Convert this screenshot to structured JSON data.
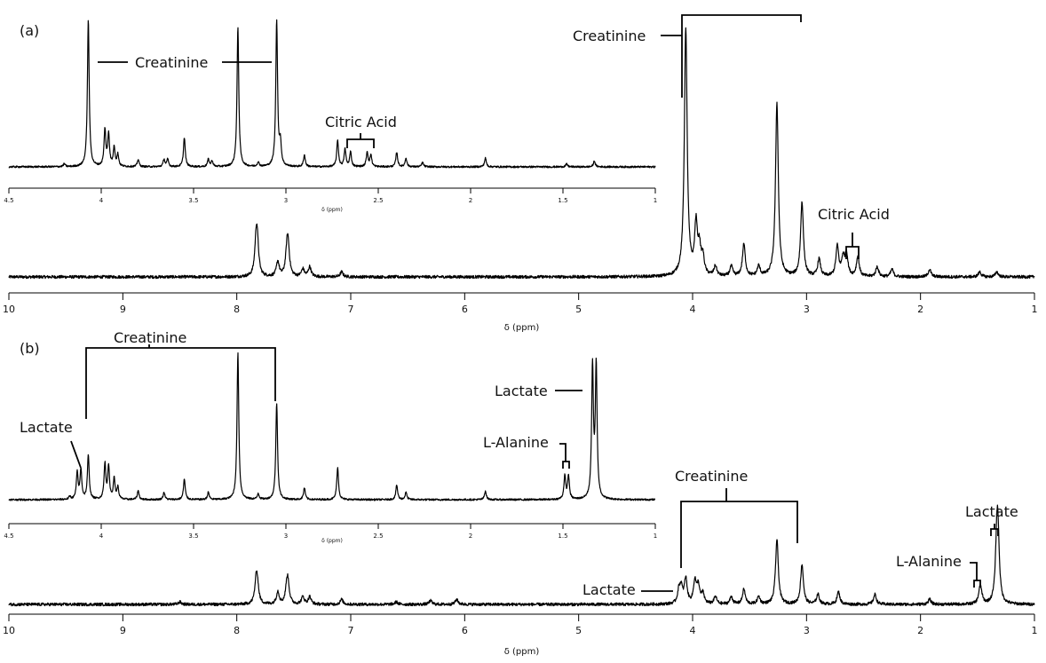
{
  "chart_data": [
    {
      "panel": "(a)",
      "type": "line",
      "xlabel": "δ (ppm)",
      "xlim": [
        10,
        1
      ],
      "x_ticks": [
        "10",
        "9",
        "8",
        "7",
        "6",
        "5",
        "4",
        "3",
        "2",
        "1"
      ],
      "peaks": [
        {
          "x": 7.83,
          "y": 0.13
        },
        {
          "x": 7.82,
          "y": 0.11
        },
        {
          "x": 7.64,
          "y": 0.06
        },
        {
          "x": 7.55,
          "y": 0.11
        },
        {
          "x": 7.56,
          "y": 0.08
        },
        {
          "x": 7.42,
          "y": 0.03
        },
        {
          "x": 7.36,
          "y": 0.04
        },
        {
          "x": 7.08,
          "y": 0.02
        },
        {
          "x": 4.06,
          "y": 1.0
        },
        {
          "x": 3.97,
          "y": 0.2
        },
        {
          "x": 3.94,
          "y": 0.1
        },
        {
          "x": 3.91,
          "y": 0.07
        },
        {
          "x": 3.8,
          "y": 0.04
        },
        {
          "x": 3.66,
          "y": 0.04
        },
        {
          "x": 3.55,
          "y": 0.13
        },
        {
          "x": 3.42,
          "y": 0.04
        },
        {
          "x": 3.26,
          "y": 0.7
        },
        {
          "x": 3.04,
          "y": 0.3
        },
        {
          "x": 2.89,
          "y": 0.07
        },
        {
          "x": 2.73,
          "y": 0.12
        },
        {
          "x": 2.68,
          "y": 0.07
        },
        {
          "x": 2.65,
          "y": 0.09
        },
        {
          "x": 2.55,
          "y": 0.08
        },
        {
          "x": 2.38,
          "y": 0.04
        },
        {
          "x": 2.25,
          "y": 0.03
        },
        {
          "x": 1.92,
          "y": 0.03
        },
        {
          "x": 1.48,
          "y": 0.02
        },
        {
          "x": 1.33,
          "y": 0.02
        }
      ],
      "inset": {
        "xlabel": "δ (ppm)",
        "xlim": [
          4.5,
          1
        ],
        "x_ticks": [
          "4.5",
          "4",
          "3.5",
          "3",
          "2.5",
          "2",
          "1.5",
          "1"
        ],
        "peaks": [
          {
            "x": 4.2,
            "y": 0.02
          },
          {
            "x": 4.07,
            "y": 1.0
          },
          {
            "x": 3.98,
            "y": 0.25
          },
          {
            "x": 3.96,
            "y": 0.22
          },
          {
            "x": 3.93,
            "y": 0.13
          },
          {
            "x": 3.91,
            "y": 0.08
          },
          {
            "x": 3.8,
            "y": 0.05
          },
          {
            "x": 3.66,
            "y": 0.05
          },
          {
            "x": 3.64,
            "y": 0.05
          },
          {
            "x": 3.55,
            "y": 0.2
          },
          {
            "x": 3.42,
            "y": 0.05
          },
          {
            "x": 3.4,
            "y": 0.04
          },
          {
            "x": 3.26,
            "y": 0.95
          },
          {
            "x": 3.15,
            "y": 0.03
          },
          {
            "x": 3.05,
            "y": 1.0
          },
          {
            "x": 3.03,
            "y": 0.15
          },
          {
            "x": 2.9,
            "y": 0.08
          },
          {
            "x": 2.72,
            "y": 0.18
          },
          {
            "x": 2.68,
            "y": 0.12
          },
          {
            "x": 2.65,
            "y": 0.1
          },
          {
            "x": 2.56,
            "y": 0.1
          },
          {
            "x": 2.54,
            "y": 0.08
          },
          {
            "x": 2.4,
            "y": 0.1
          },
          {
            "x": 2.35,
            "y": 0.06
          },
          {
            "x": 2.26,
            "y": 0.03
          },
          {
            "x": 1.92,
            "y": 0.06
          },
          {
            "x": 1.48,
            "y": 0.02
          },
          {
            "x": 1.33,
            "y": 0.04
          }
        ]
      },
      "annotations": [
        "Creatinine",
        "Citric Acid",
        "Creatinine",
        "Citric Acid"
      ]
    },
    {
      "panel": "(b)",
      "type": "line",
      "xlabel": "δ (ppm)",
      "xlim": [
        10,
        1
      ],
      "x_ticks": [
        "10",
        "9",
        "8",
        "7",
        "6",
        "5",
        "4",
        "3",
        "2",
        "1"
      ],
      "peaks": [
        {
          "x": 8.5,
          "y": 0.01
        },
        {
          "x": 7.83,
          "y": 0.08
        },
        {
          "x": 7.82,
          "y": 0.07
        },
        {
          "x": 7.64,
          "y": 0.05
        },
        {
          "x": 7.56,
          "y": 0.07
        },
        {
          "x": 7.55,
          "y": 0.06
        },
        {
          "x": 7.42,
          "y": 0.03
        },
        {
          "x": 7.36,
          "y": 0.03
        },
        {
          "x": 7.08,
          "y": 0.02
        },
        {
          "x": 6.6,
          "y": 0.01
        },
        {
          "x": 6.3,
          "y": 0.015
        },
        {
          "x": 6.07,
          "y": 0.02
        },
        {
          "x": 4.12,
          "y": 0.05
        },
        {
          "x": 4.1,
          "y": 0.06
        },
        {
          "x": 4.06,
          "y": 0.1
        },
        {
          "x": 3.98,
          "y": 0.09
        },
        {
          "x": 3.95,
          "y": 0.07
        },
        {
          "x": 3.91,
          "y": 0.04
        },
        {
          "x": 3.8,
          "y": 0.03
        },
        {
          "x": 3.66,
          "y": 0.03
        },
        {
          "x": 3.55,
          "y": 0.06
        },
        {
          "x": 3.42,
          "y": 0.03
        },
        {
          "x": 3.26,
          "y": 0.26
        },
        {
          "x": 3.04,
          "y": 0.16
        },
        {
          "x": 2.9,
          "y": 0.04
        },
        {
          "x": 2.72,
          "y": 0.05
        },
        {
          "x": 2.4,
          "y": 0.04
        },
        {
          "x": 1.92,
          "y": 0.02
        },
        {
          "x": 1.48,
          "y": 0.04
        },
        {
          "x": 1.47,
          "y": 0.04
        },
        {
          "x": 1.33,
          "y": 0.22
        },
        {
          "x": 1.32,
          "y": 0.22
        }
      ],
      "inset": {
        "xlabel": "δ (ppm)",
        "xlim": [
          4.5,
          1
        ],
        "x_ticks": [
          "4.5",
          "4",
          "3.5",
          "3",
          "2.5",
          "2",
          "1.5",
          "1"
        ],
        "peaks": [
          {
            "x": 4.17,
            "y": 0.02
          },
          {
            "x": 4.13,
            "y": 0.18
          },
          {
            "x": 4.11,
            "y": 0.2
          },
          {
            "x": 4.07,
            "y": 0.3
          },
          {
            "x": 3.98,
            "y": 0.24
          },
          {
            "x": 3.96,
            "y": 0.22
          },
          {
            "x": 3.93,
            "y": 0.14
          },
          {
            "x": 3.91,
            "y": 0.08
          },
          {
            "x": 3.8,
            "y": 0.06
          },
          {
            "x": 3.66,
            "y": 0.05
          },
          {
            "x": 3.55,
            "y": 0.14
          },
          {
            "x": 3.42,
            "y": 0.05
          },
          {
            "x": 3.26,
            "y": 1.0
          },
          {
            "x": 3.15,
            "y": 0.04
          },
          {
            "x": 3.05,
            "y": 0.66
          },
          {
            "x": 2.9,
            "y": 0.08
          },
          {
            "x": 2.72,
            "y": 0.22
          },
          {
            "x": 2.4,
            "y": 0.1
          },
          {
            "x": 2.35,
            "y": 0.05
          },
          {
            "x": 1.92,
            "y": 0.06
          },
          {
            "x": 1.49,
            "y": 0.16
          },
          {
            "x": 1.47,
            "y": 0.16
          },
          {
            "x": 1.34,
            "y": 0.9
          },
          {
            "x": 1.32,
            "y": 0.9
          }
        ]
      },
      "annotations": [
        "Creatinine",
        "Lactate",
        "L-Alanine",
        "Lactate",
        "Creatinine",
        "Lactate",
        "L-Alanine",
        "Lactate"
      ]
    }
  ]
}
